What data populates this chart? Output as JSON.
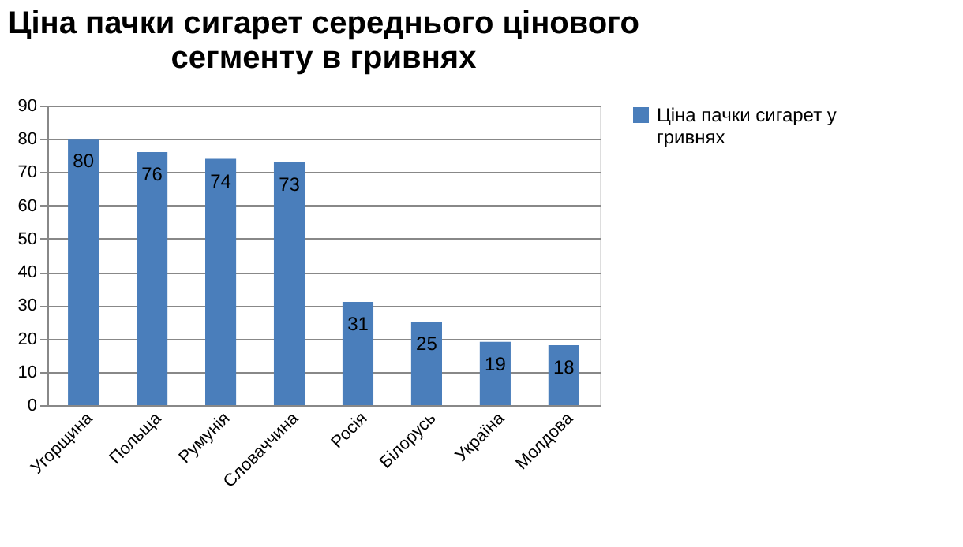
{
  "chart_data": {
    "type": "bar",
    "title": "Ціна пачки сигарет середнього цінового сегменту в гривнях",
    "categories": [
      "Угорщина",
      "Польща",
      "Румунія",
      "Словаччина",
      "Росія",
      "Білорусь",
      "Україна",
      "Молдова"
    ],
    "series": [
      {
        "name": "Ціна пачки сигарет у гривнях",
        "color": "#4a7ebb",
        "values": [
          80,
          76,
          74,
          73,
          31,
          25,
          19,
          18
        ]
      }
    ],
    "ylim": [
      0,
      90
    ],
    "yticks": [
      0,
      10,
      20,
      30,
      40,
      50,
      60,
      70,
      80,
      90
    ],
    "grid": "y",
    "legend": "right",
    "data_labels": true
  }
}
